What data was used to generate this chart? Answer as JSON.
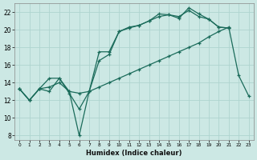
{
  "xlabel": "Humidex (Indice chaleur)",
  "bg_color": "#cce8e4",
  "line_color": "#1a6b5a",
  "grid_color": "#afd4cf",
  "xmin": 0,
  "xmax": 23,
  "ymin": 7.5,
  "ymax": 23.0,
  "line1_x": [
    0,
    1,
    2,
    3,
    4,
    5,
    6,
    7,
    8,
    9,
    10,
    11,
    12,
    13,
    14,
    15,
    16,
    17,
    18,
    19,
    20,
    21
  ],
  "line1_y": [
    13.3,
    12.0,
    13.3,
    13.0,
    14.5,
    13.0,
    8.0,
    13.0,
    17.5,
    17.5,
    19.8,
    20.2,
    20.5,
    21.0,
    21.8,
    21.7,
    21.3,
    22.5,
    21.8,
    21.2,
    20.3,
    20.2
  ],
  "line2_x": [
    0,
    1,
    2,
    3,
    4,
    5,
    6,
    7,
    8,
    9,
    10,
    11,
    12,
    13,
    14,
    15,
    16,
    17,
    18,
    19,
    20,
    21
  ],
  "line2_y": [
    13.3,
    12.0,
    13.3,
    14.5,
    14.5,
    12.8,
    11.0,
    13.0,
    16.5,
    17.2,
    19.8,
    20.3,
    20.5,
    21.0,
    21.5,
    21.7,
    21.5,
    22.2,
    21.5,
    21.2,
    20.3,
    20.2
  ],
  "line3_x": [
    0,
    1,
    2,
    3,
    4,
    5,
    6,
    7,
    8,
    9,
    10,
    11,
    12,
    13,
    14,
    15,
    16,
    17,
    18,
    19,
    20,
    21,
    22,
    23
  ],
  "line3_y": [
    13.3,
    12.0,
    13.3,
    13.5,
    14.0,
    13.0,
    12.8,
    13.0,
    13.5,
    14.0,
    14.5,
    15.0,
    15.5,
    16.0,
    16.5,
    17.0,
    17.5,
    18.0,
    18.5,
    19.2,
    19.8,
    20.3,
    14.8,
    12.5
  ],
  "xtick_values": [
    0,
    1,
    2,
    3,
    4,
    5,
    6,
    7,
    8,
    9,
    10,
    11,
    12,
    13,
    14,
    15,
    16,
    17,
    18,
    19,
    20,
    21,
    22,
    23
  ],
  "ytick_values": [
    8,
    10,
    12,
    14,
    16,
    18,
    20,
    22
  ]
}
